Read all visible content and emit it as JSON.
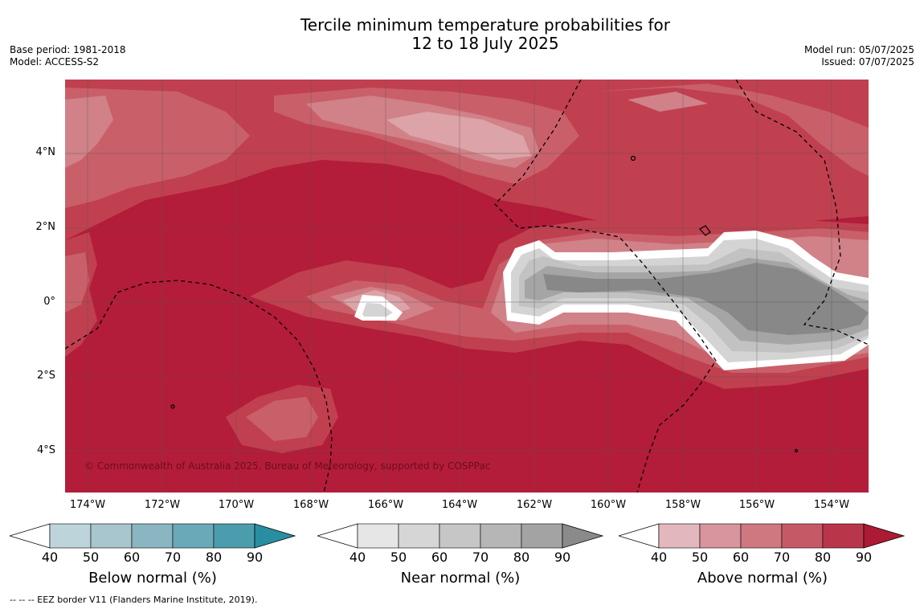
{
  "title": {
    "line1": "Tercile minimum temperature probabilities for",
    "line2": "12 to 18 July 2025"
  },
  "meta": {
    "base_period": "Base period: 1981-2018",
    "model": "Model: ACCESS-S2",
    "model_run": "Model run: 05/07/2025",
    "issued": "Issued: 07/07/2025"
  },
  "map": {
    "credit": "© Commonwealth of Australia 2025, Bureau of Meteorology, supported by COSPPac",
    "lat_labels": [
      "4°N",
      "2°N",
      "0°",
      "2°S",
      "4°S"
    ],
    "lon_labels": [
      "174°W",
      "172°W",
      "170°W",
      "168°W",
      "166°W",
      "164°W",
      "162°W",
      "160°W",
      "158°W",
      "156°W",
      "154°W"
    ],
    "dominant_category": "Above normal",
    "colors": {
      "above_90": "#b31d39",
      "above_80": "#c0404f",
      "above_70": "#c96069",
      "above_60": "#d18188",
      "above_50": "#dca3a8",
      "near_90": "#888888",
      "near_80": "#a5a5a5",
      "near_70": "#c2c2c2",
      "near_60": "#d4d4d4",
      "white": "#ffffff"
    }
  },
  "colorbars": [
    {
      "label": "Below normal (%)",
      "ticks": [
        "40",
        "50",
        "60",
        "70",
        "80",
        "90"
      ],
      "colors": [
        "#bdd4db",
        "#a7c6cd",
        "#8ab6c2",
        "#6aaab8",
        "#4b9dad",
        "#2a8ea2"
      ]
    },
    {
      "label": "Near normal (%)",
      "ticks": [
        "40",
        "50",
        "60",
        "70",
        "80",
        "90"
      ],
      "colors": [
        "#e6e6e6",
        "#d6d6d6",
        "#c6c6c6",
        "#b6b6b6",
        "#a3a3a3",
        "#8a8a8a"
      ]
    },
    {
      "label": "Above normal (%)",
      "ticks": [
        "40",
        "50",
        "60",
        "70",
        "80",
        "90"
      ],
      "colors": [
        "#e2b8bd",
        "#d8959d",
        "#cf7880",
        "#c55a66",
        "#b9364a",
        "#ad1a35"
      ]
    }
  ],
  "footer": "--  --  -- EEZ border V11 (Flanders Marine Institute, 2019)."
}
